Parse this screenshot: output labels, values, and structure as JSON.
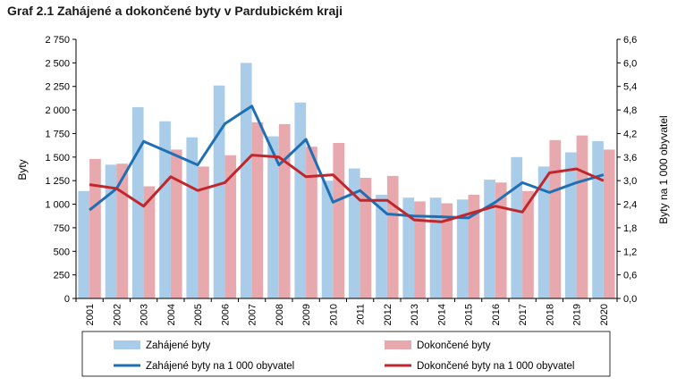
{
  "title": "Graf 2.1 Zahájené a dokončené byty v Pardubickém kraji",
  "chart_data": {
    "type": "bar",
    "categories": [
      "2001",
      "2002",
      "2003",
      "2004",
      "2005",
      "2006",
      "2007",
      "2008",
      "2009",
      "2010",
      "2011",
      "2012",
      "2013",
      "2014",
      "2015",
      "2016",
      "2017",
      "2018",
      "2019",
      "2020"
    ],
    "series": [
      {
        "name": "Zahájené byty",
        "type": "bar",
        "axis": "left",
        "color": "#a9cde8",
        "values": [
          1140,
          1420,
          2030,
          1880,
          1710,
          2260,
          2500,
          1720,
          2080,
          1250,
          1380,
          1100,
          1070,
          1070,
          1050,
          1260,
          1500,
          1400,
          1550,
          1670
        ]
      },
      {
        "name": "Dokončené byty",
        "type": "bar",
        "axis": "left",
        "color": "#e8a9ae",
        "values": [
          1480,
          1430,
          1190,
          1580,
          1400,
          1520,
          1870,
          1850,
          1610,
          1650,
          1280,
          1300,
          1030,
          1010,
          1100,
          1230,
          1140,
          1680,
          1730,
          1580
        ]
      },
      {
        "name": "Zahájené byty na 1 000 obyvatel",
        "type": "line",
        "axis": "right",
        "color": "#1f6fb5",
        "values": [
          2.25,
          2.8,
          4.0,
          3.7,
          3.4,
          4.45,
          4.9,
          3.4,
          4.05,
          2.45,
          2.75,
          2.15,
          2.1,
          2.08,
          2.05,
          2.45,
          2.95,
          2.7,
          2.95,
          3.15
        ]
      },
      {
        "name": "Dokončené byty na 1 000 obyvatel",
        "type": "line",
        "axis": "right",
        "color": "#c0272d",
        "values": [
          2.9,
          2.8,
          2.35,
          3.1,
          2.75,
          2.95,
          3.65,
          3.6,
          3.1,
          3.15,
          2.5,
          2.5,
          2.0,
          1.95,
          2.15,
          2.35,
          2.2,
          3.2,
          3.3,
          3.0
        ]
      }
    ],
    "ylabel": "Byty",
    "ylabel_right": "Byty na 1 000 obyvatel",
    "ylim": [
      0,
      2750
    ],
    "ylim_right": [
      0,
      6.6
    ],
    "yticks": [
      "0",
      "250",
      "500",
      "750",
      "1 000",
      "1 250",
      "1 500",
      "1 750",
      "2 000",
      "2 250",
      "2 500",
      "2 750"
    ],
    "yticks_right": [
      "0,0",
      "0,6",
      "1,2",
      "1,8",
      "2,4",
      "3,0",
      "3,6",
      "4,2",
      "4,8",
      "5,4",
      "6,0",
      "6,6"
    ],
    "grid": false,
    "legend_position": "bottom"
  }
}
